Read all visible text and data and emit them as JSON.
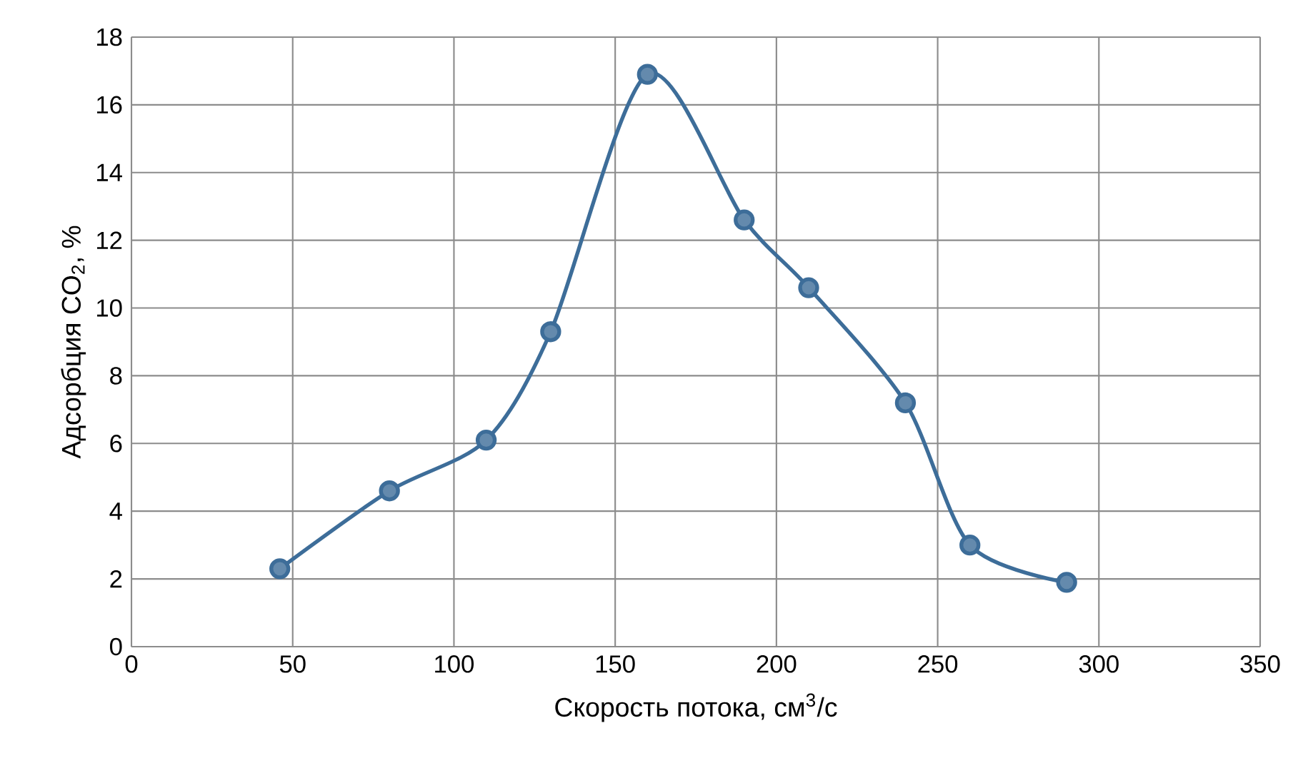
{
  "chart_data": {
    "type": "line",
    "xlabel": "Скорость потока, см$^{3}$/с",
    "ylabel": "Адсорбция CO$_{2}$, %",
    "x": [
      46,
      80,
      110,
      130,
      160,
      190,
      210,
      240,
      260,
      290
    ],
    "series": [
      {
        "color": "#3d6d99",
        "values": [
          2.3,
          4.6,
          6.1,
          9.3,
          16.9,
          12.6,
          10.6,
          7.2,
          3.0,
          1.9
        ]
      }
    ],
    "xlim": [
      0,
      350
    ],
    "xticks": [
      0,
      50,
      100,
      150,
      200,
      250,
      300,
      350
    ],
    "ylim": [
      0,
      18
    ],
    "yticks": [
      0,
      2,
      4,
      6,
      8,
      10,
      12,
      14,
      16,
      18
    ],
    "grid": true,
    "marker": "circle",
    "line_style": "solid"
  }
}
